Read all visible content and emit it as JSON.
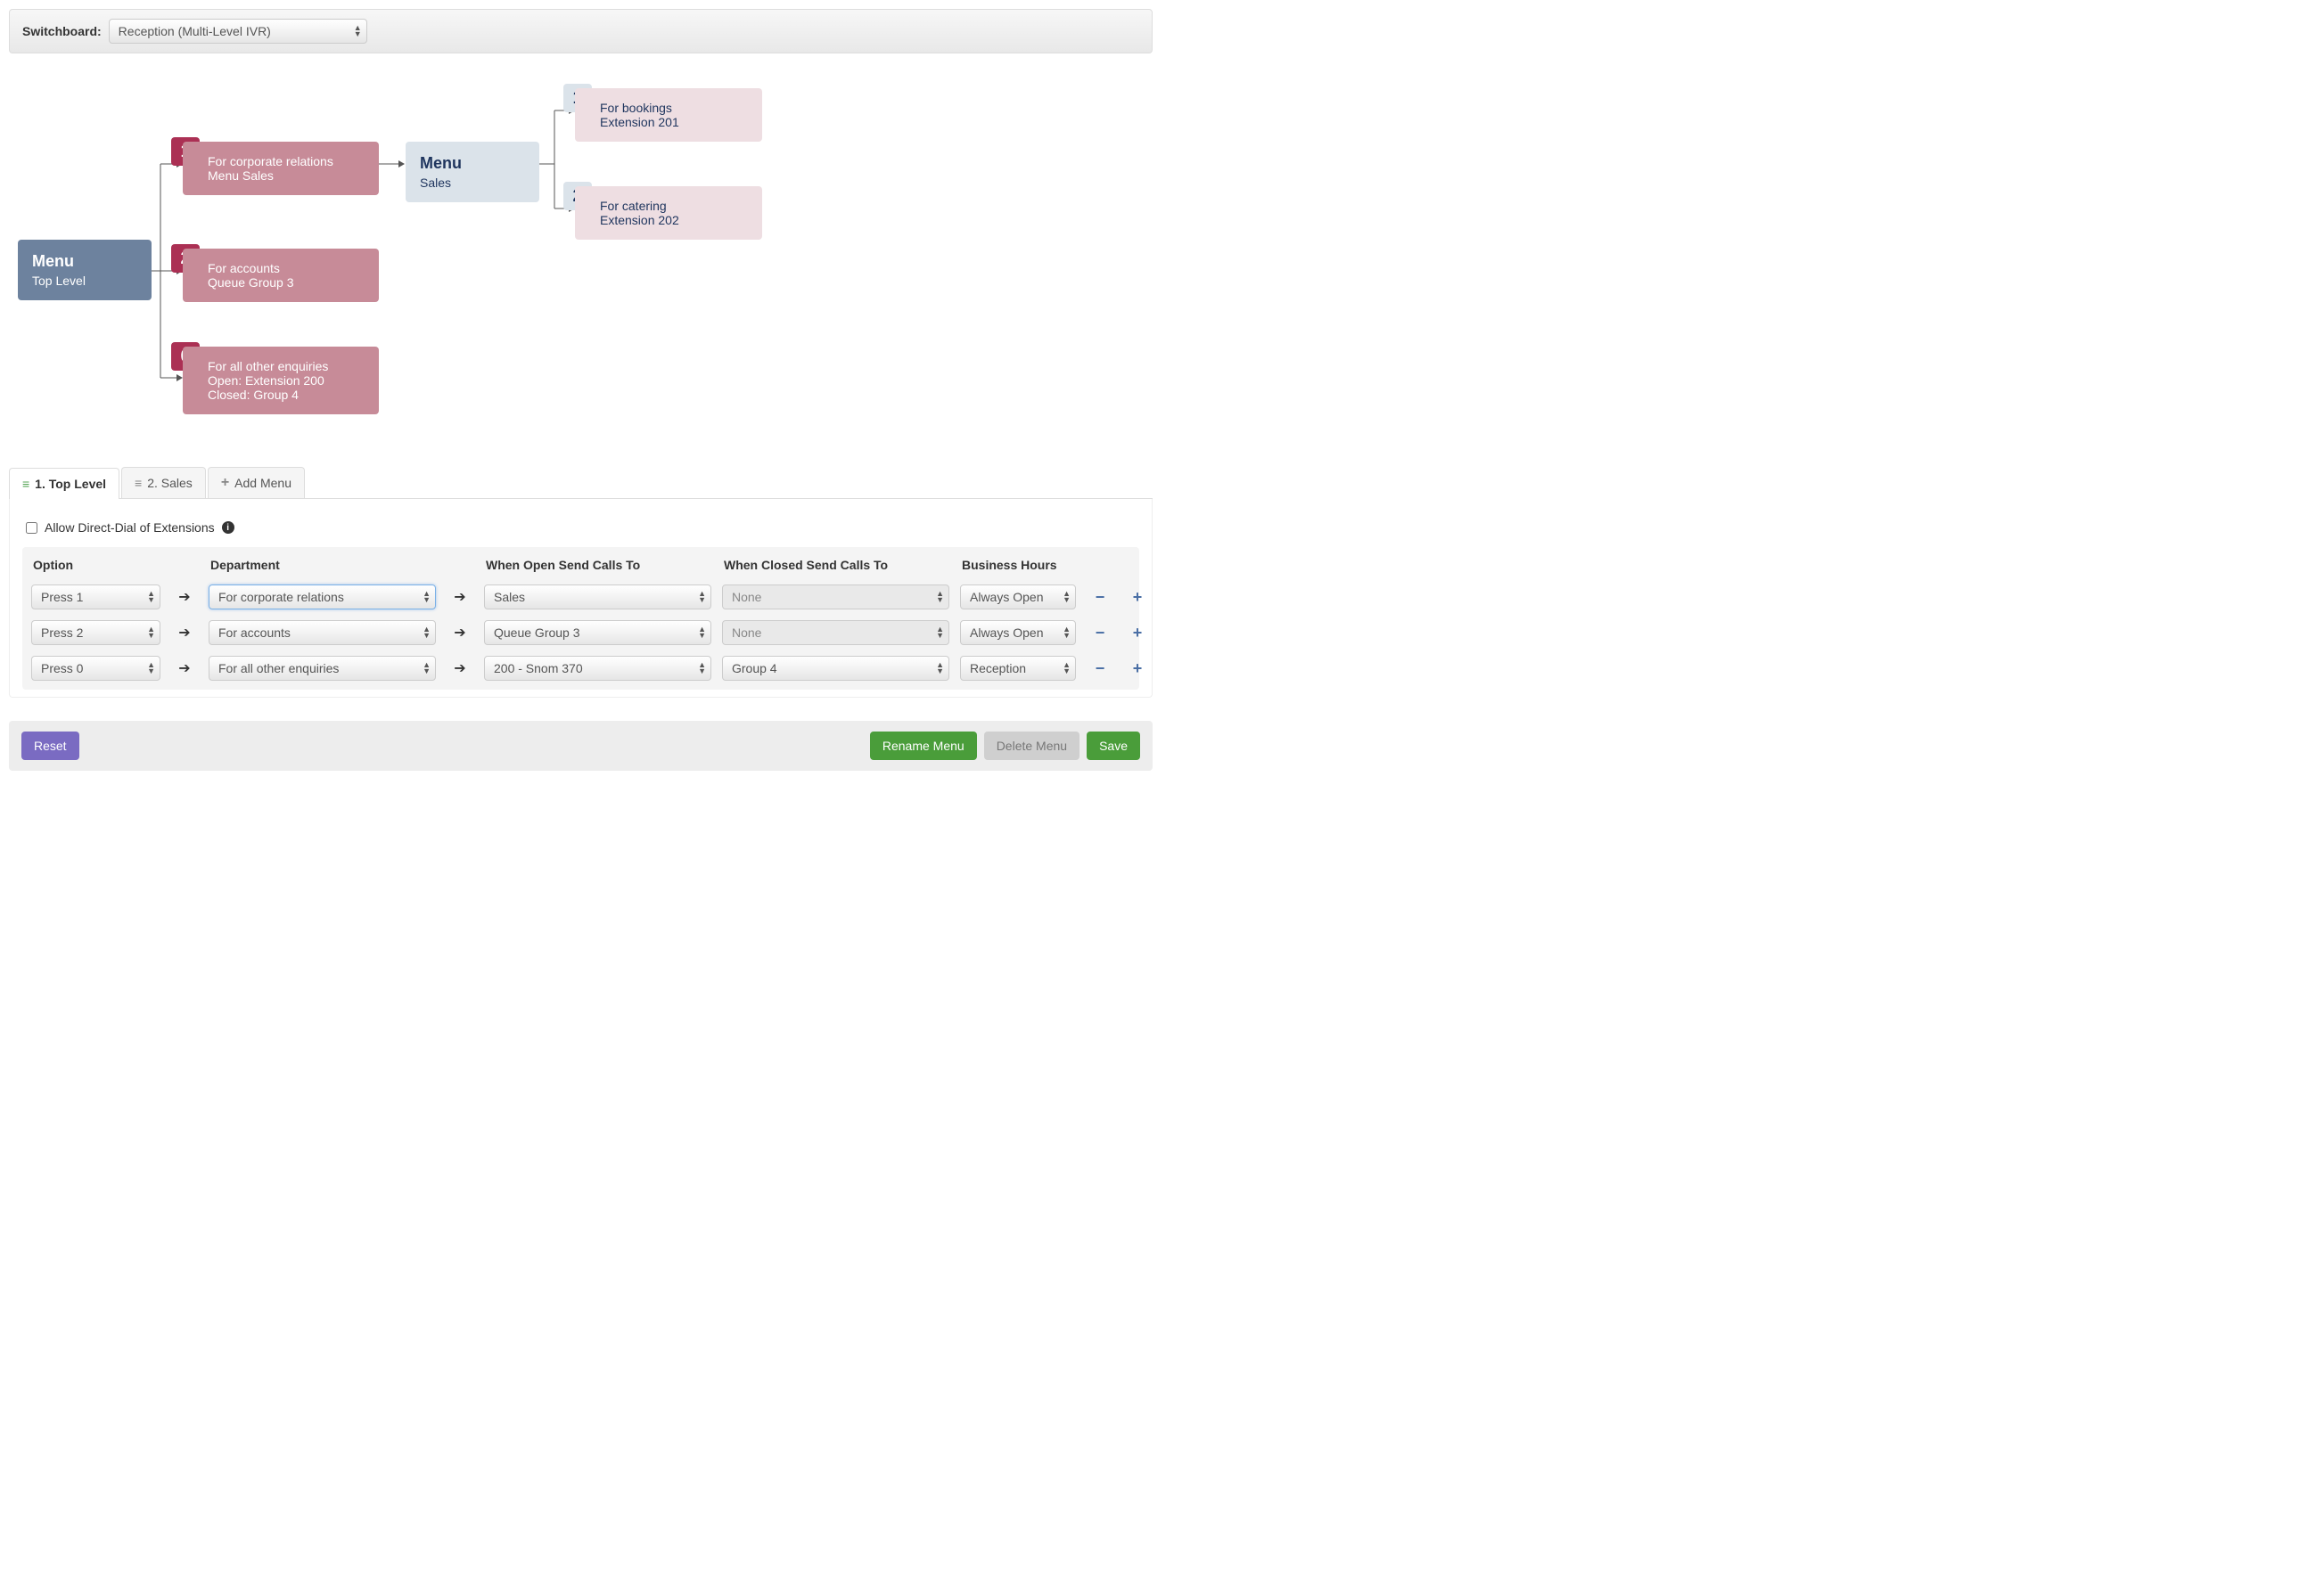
{
  "switchboard": {
    "label": "Switchboard:",
    "selected": "Reception (Multi-Level IVR)"
  },
  "colors": {
    "node_blue": "#6d829e",
    "node_light": "#dbe3ea",
    "node_pink": "#c78b98",
    "node_pink_light": "#eedee2",
    "badge_red": "#ab3054",
    "text_navy": "#1f355e",
    "accent_green": "#4a9d3a",
    "accent_purple": "#7a6bc2",
    "icon_blue": "#4a6fa5"
  },
  "diagram": {
    "root": {
      "title": "Menu",
      "sub": "Top Level"
    },
    "level1": [
      {
        "key": "1",
        "line1": "For corporate relations",
        "line2": "Menu Sales"
      },
      {
        "key": "2",
        "line1": "For accounts",
        "line2": "Queue Group 3"
      },
      {
        "key": "0",
        "line1": "For all other enquiries",
        "line2": "Open: Extension 200",
        "line3": "Closed: Group 4"
      }
    ],
    "submenu": {
      "title": "Menu",
      "sub": "Sales"
    },
    "level2": [
      {
        "key": "1",
        "line1": "For bookings",
        "line2": "Extension 201"
      },
      {
        "key": "2",
        "line1": "For catering",
        "line2": "Extension 202"
      }
    ]
  },
  "tabs": {
    "t1": "1. Top Level",
    "t2": "2. Sales",
    "add": "Add Menu"
  },
  "allow_direct": "Allow Direct-Dial of Extensions",
  "table": {
    "headers": {
      "option": "Option",
      "department": "Department",
      "open": "When Open Send Calls To",
      "closed": "When Closed Send Calls To",
      "hours": "Business Hours"
    },
    "rows": [
      {
        "option": "Press 1",
        "department": "For corporate relations",
        "open": "Sales",
        "closed": "None",
        "hours": "Always Open",
        "dept_focused": true,
        "closed_disabled": true
      },
      {
        "option": "Press 2",
        "department": "For accounts",
        "open": "Queue Group 3",
        "closed": "None",
        "hours": "Always Open",
        "closed_disabled": true
      },
      {
        "option": "Press 0",
        "department": "For all other enquiries",
        "open": "200 - Snom 370",
        "closed": "Group 4",
        "hours": "Reception"
      }
    ]
  },
  "footer": {
    "reset": "Reset",
    "rename": "Rename Menu",
    "delete": "Delete Menu",
    "save": "Save"
  }
}
